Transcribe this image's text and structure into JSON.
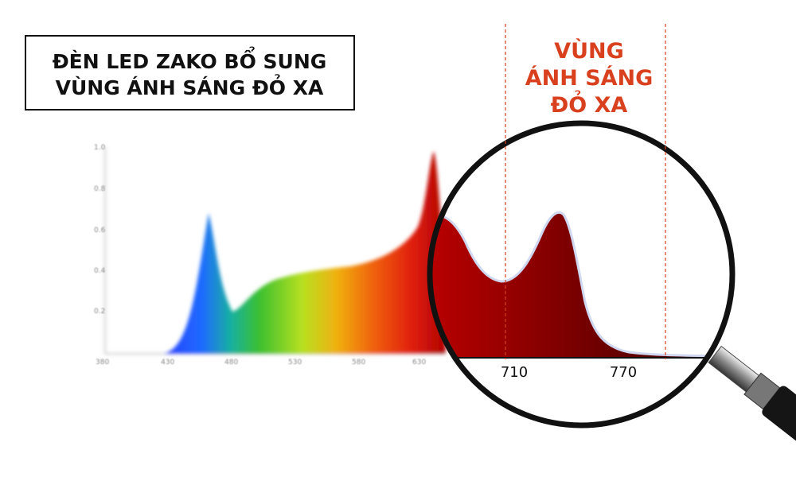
{
  "header": {
    "lines": [
      "ĐÈN LED ZAKO BỔ SUNG",
      "VÙNG ÁNH SÁNG ĐỎ XA"
    ]
  },
  "annotation": {
    "lines": [
      "VÙNG",
      "ÁNH SÁNG",
      "ĐỎ XA"
    ]
  },
  "spectrum": {
    "yticks": [
      "1.0",
      "0.8",
      "0.6",
      "0.4",
      "0.2"
    ],
    "xticks": [
      "380",
      "430",
      "480",
      "530",
      "580",
      "630"
    ]
  },
  "magnifier": {
    "xticks": [
      "710",
      "770"
    ]
  }
}
